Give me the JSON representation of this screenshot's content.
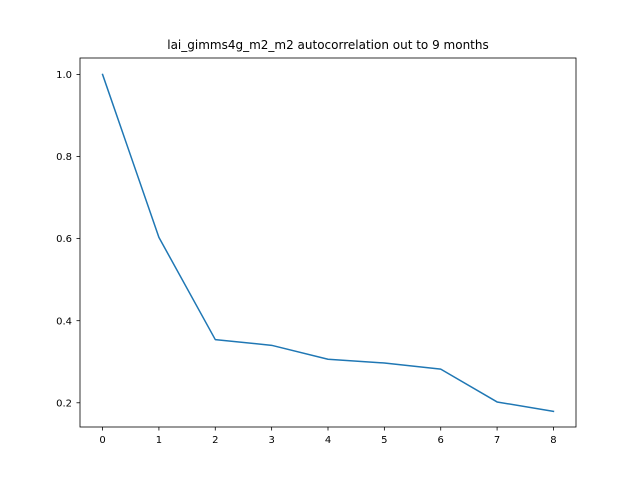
{
  "chart_data": {
    "type": "line",
    "title": "lai_gimms4g_m2_m2 autocorrelation out to 9 months",
    "xlabel": "",
    "ylabel": "",
    "x": [
      0,
      1,
      2,
      3,
      4,
      5,
      6,
      7,
      8
    ],
    "series": [
      {
        "values": [
          1.0,
          0.603,
          0.354,
          0.34,
          0.306,
          0.297,
          0.282,
          0.202,
          0.179
        ],
        "color": "#1f77b4"
      }
    ],
    "xlim": [
      -0.4,
      8.4
    ],
    "ylim": [
      0.141,
      1.04
    ],
    "xticks": [
      0,
      1,
      2,
      3,
      4,
      5,
      6,
      7,
      8
    ],
    "yticks": [
      0.2,
      0.4,
      0.6,
      0.8,
      1.0
    ],
    "ytick_labels": [
      "0.2",
      "0.4",
      "0.6",
      "0.8",
      "1.0"
    ],
    "grid": false,
    "legend": "none"
  }
}
